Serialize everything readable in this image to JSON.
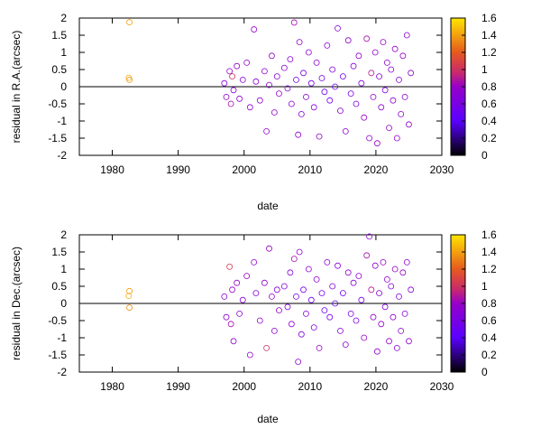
{
  "chart_data": [
    {
      "type": "scatter",
      "xlabel": "date",
      "ylabel": "residual in R.A.(arcsec)",
      "xlim": [
        1975,
        2030
      ],
      "ylim": [
        -2,
        2
      ],
      "xticks": [
        1980,
        1990,
        2000,
        2010,
        2020,
        2030
      ],
      "yticks": [
        -2,
        -1.5,
        -1,
        -0.5,
        0,
        0.5,
        1,
        1.5,
        2
      ],
      "colorbar": {
        "min": 0,
        "max": 1.6,
        "ticks": [
          0,
          0.2,
          0.4,
          0.6,
          0.8,
          1,
          1.2,
          1.4,
          1.6
        ]
      },
      "zero_line": true,
      "series": [
        {
          "points": [
            [
              1982.6,
              1.88,
              1.4
            ],
            [
              1982.5,
              0.26,
              1.45
            ],
            [
              1982.6,
              0.2,
              1.35
            ],
            [
              1997.0,
              0.1,
              0.7
            ],
            [
              1997.3,
              -0.3,
              0.75
            ],
            [
              1997.8,
              0.45,
              0.8
            ],
            [
              1998.0,
              -0.5,
              0.85
            ],
            [
              1998.2,
              0.3,
              1.0
            ],
            [
              1998.4,
              -0.1,
              0.7
            ],
            [
              1998.9,
              0.6,
              0.8
            ],
            [
              1999.3,
              -0.35,
              0.75
            ],
            [
              1999.8,
              0.2,
              0.7
            ],
            [
              2000.4,
              0.7,
              0.8
            ],
            [
              2000.9,
              -0.6,
              0.75
            ],
            [
              2001.5,
              1.67,
              0.8
            ],
            [
              2001.8,
              0.15,
              0.7
            ],
            [
              2002.4,
              -0.4,
              0.8
            ],
            [
              2003.1,
              0.45,
              0.75
            ],
            [
              2003.4,
              -1.3,
              0.8
            ],
            [
              2003.8,
              0.05,
              0.7
            ],
            [
              2004.2,
              0.9,
              0.8
            ],
            [
              2004.6,
              -0.75,
              0.75
            ],
            [
              2005.0,
              0.3,
              0.7
            ],
            [
              2005.3,
              -0.2,
              0.8
            ],
            [
              2006.1,
              0.55,
              0.7
            ],
            [
              2006.6,
              -0.05,
              0.65
            ],
            [
              2007.0,
              0.8,
              0.7
            ],
            [
              2007.2,
              -0.5,
              0.75
            ],
            [
              2007.6,
              1.87,
              0.85
            ],
            [
              2007.9,
              0.2,
              0.6
            ],
            [
              2008.2,
              -1.4,
              0.75
            ],
            [
              2008.4,
              1.3,
              0.8
            ],
            [
              2008.7,
              -0.8,
              0.7
            ],
            [
              2009.0,
              0.4,
              0.6
            ],
            [
              2009.4,
              -0.3,
              0.7
            ],
            [
              2009.8,
              1.0,
              0.75
            ],
            [
              2010.2,
              0.1,
              0.55
            ],
            [
              2010.6,
              -0.6,
              0.7
            ],
            [
              2011.0,
              0.7,
              0.75
            ],
            [
              2011.4,
              -1.45,
              0.8
            ],
            [
              2011.8,
              0.25,
              0.6
            ],
            [
              2012.2,
              -0.15,
              0.55
            ],
            [
              2012.6,
              1.2,
              0.75
            ],
            [
              2013.0,
              -0.4,
              0.6
            ],
            [
              2013.4,
              0.5,
              0.7
            ],
            [
              2013.8,
              0.0,
              0.5
            ],
            [
              2014.2,
              1.7,
              0.7
            ],
            [
              2014.6,
              -0.7,
              0.7
            ],
            [
              2015.0,
              0.3,
              0.55
            ],
            [
              2015.4,
              -1.3,
              0.7
            ],
            [
              2015.8,
              1.35,
              0.75
            ],
            [
              2016.2,
              -0.2,
              0.6
            ],
            [
              2016.6,
              0.6,
              0.7
            ],
            [
              2017.0,
              -0.5,
              0.65
            ],
            [
              2017.4,
              0.9,
              0.75
            ],
            [
              2017.8,
              0.1,
              0.6
            ],
            [
              2018.2,
              -0.9,
              0.8
            ],
            [
              2018.6,
              1.4,
              0.85
            ],
            [
              2019.0,
              -1.5,
              0.75
            ],
            [
              2019.3,
              0.4,
              0.9
            ],
            [
              2019.6,
              -0.3,
              0.8
            ],
            [
              2019.9,
              1.0,
              0.75
            ],
            [
              2020.2,
              -1.65,
              0.8
            ],
            [
              2020.5,
              0.3,
              0.7
            ],
            [
              2020.8,
              -0.6,
              0.75
            ],
            [
              2021.1,
              1.3,
              0.8
            ],
            [
              2021.4,
              -0.1,
              0.65
            ],
            [
              2021.7,
              0.7,
              0.75
            ],
            [
              2022.0,
              -1.2,
              0.8
            ],
            [
              2022.3,
              0.5,
              0.7
            ],
            [
              2022.6,
              -0.4,
              0.75
            ],
            [
              2022.9,
              1.1,
              0.8
            ],
            [
              2023.2,
              -1.5,
              0.75
            ],
            [
              2023.5,
              0.2,
              0.7
            ],
            [
              2023.8,
              -0.8,
              0.75
            ],
            [
              2024.1,
              0.9,
              0.8
            ],
            [
              2024.4,
              -0.3,
              0.7
            ],
            [
              2024.7,
              1.5,
              0.75
            ],
            [
              2025.0,
              -1.1,
              0.8
            ],
            [
              2025.3,
              0.4,
              0.7
            ]
          ]
        }
      ]
    },
    {
      "type": "scatter",
      "xlabel": "date",
      "ylabel": "residual in Dec.(arcsec)",
      "xlim": [
        1975,
        2030
      ],
      "ylim": [
        -2,
        2
      ],
      "xticks": [
        1980,
        1990,
        2000,
        2010,
        2020,
        2030
      ],
      "yticks": [
        -2,
        -1.5,
        -1,
        -0.5,
        0,
        0.5,
        1,
        1.5,
        2
      ],
      "colorbar": {
        "min": 0,
        "max": 1.6,
        "ticks": [
          0,
          0.2,
          0.4,
          0.6,
          0.8,
          1,
          1.2,
          1.4,
          1.6
        ]
      },
      "zero_line": true,
      "series": [
        {
          "points": [
            [
              1982.6,
              0.36,
              1.4
            ],
            [
              1982.5,
              0.22,
              1.45
            ],
            [
              1982.6,
              -0.12,
              1.35
            ],
            [
              1997.0,
              0.2,
              0.7
            ],
            [
              1997.3,
              -0.4,
              0.75
            ],
            [
              1997.8,
              1.07,
              1.05
            ],
            [
              1998.0,
              -0.6,
              0.85
            ],
            [
              1998.2,
              0.4,
              0.8
            ],
            [
              1998.4,
              -1.1,
              0.75
            ],
            [
              1998.9,
              0.6,
              0.8
            ],
            [
              1999.3,
              -0.3,
              0.75
            ],
            [
              1999.8,
              0.1,
              0.7
            ],
            [
              2000.4,
              0.8,
              0.8
            ],
            [
              2000.9,
              -1.5,
              0.75
            ],
            [
              2001.5,
              1.2,
              0.8
            ],
            [
              2001.8,
              0.3,
              0.7
            ],
            [
              2002.4,
              -0.5,
              0.8
            ],
            [
              2003.1,
              0.6,
              0.75
            ],
            [
              2003.4,
              -1.3,
              1.0
            ],
            [
              2003.8,
              1.6,
              0.8
            ],
            [
              2004.2,
              0.2,
              0.8
            ],
            [
              2004.6,
              -0.8,
              0.75
            ],
            [
              2005.0,
              0.4,
              0.7
            ],
            [
              2005.3,
              -0.2,
              0.8
            ],
            [
              2006.1,
              0.5,
              0.7
            ],
            [
              2006.6,
              -0.1,
              0.65
            ],
            [
              2007.0,
              0.9,
              0.7
            ],
            [
              2007.2,
              -0.6,
              0.75
            ],
            [
              2007.6,
              1.3,
              0.85
            ],
            [
              2007.9,
              0.2,
              0.6
            ],
            [
              2008.2,
              -1.7,
              0.75
            ],
            [
              2008.4,
              1.5,
              0.8
            ],
            [
              2008.7,
              -0.9,
              0.7
            ],
            [
              2009.0,
              0.4,
              0.6
            ],
            [
              2009.4,
              -0.3,
              0.7
            ],
            [
              2009.8,
              1.0,
              0.75
            ],
            [
              2010.2,
              0.1,
              0.55
            ],
            [
              2010.6,
              -0.7,
              0.7
            ],
            [
              2011.0,
              0.7,
              0.75
            ],
            [
              2011.4,
              -1.3,
              0.8
            ],
            [
              2011.8,
              0.3,
              0.6
            ],
            [
              2012.2,
              -0.2,
              0.55
            ],
            [
              2012.6,
              1.2,
              0.75
            ],
            [
              2013.0,
              -0.4,
              0.6
            ],
            [
              2013.4,
              0.5,
              0.7
            ],
            [
              2013.8,
              0.0,
              0.5
            ],
            [
              2014.2,
              1.1,
              0.7
            ],
            [
              2014.6,
              -0.8,
              0.7
            ],
            [
              2015.0,
              0.3,
              0.55
            ],
            [
              2015.4,
              -1.2,
              0.7
            ],
            [
              2015.8,
              0.9,
              0.75
            ],
            [
              2016.2,
              -0.3,
              0.6
            ],
            [
              2016.6,
              0.6,
              0.7
            ],
            [
              2017.0,
              -0.5,
              0.65
            ],
            [
              2017.4,
              0.8,
              0.75
            ],
            [
              2017.8,
              0.1,
              0.6
            ],
            [
              2018.2,
              -1.0,
              0.8
            ],
            [
              2018.6,
              1.4,
              0.85
            ],
            [
              2019.0,
              1.95,
              0.75
            ],
            [
              2019.3,
              0.4,
              0.9
            ],
            [
              2019.6,
              -0.4,
              0.8
            ],
            [
              2019.9,
              1.1,
              0.75
            ],
            [
              2020.2,
              -1.4,
              0.8
            ],
            [
              2020.5,
              0.3,
              0.7
            ],
            [
              2020.8,
              -0.6,
              0.75
            ],
            [
              2021.1,
              1.2,
              0.8
            ],
            [
              2021.4,
              -0.1,
              0.65
            ],
            [
              2021.7,
              0.7,
              0.75
            ],
            [
              2022.0,
              -1.1,
              0.8
            ],
            [
              2022.3,
              0.5,
              0.7
            ],
            [
              2022.6,
              -0.4,
              0.75
            ],
            [
              2022.9,
              1.0,
              0.8
            ],
            [
              2023.2,
              -1.3,
              0.75
            ],
            [
              2023.5,
              0.2,
              0.7
            ],
            [
              2023.8,
              -0.8,
              0.75
            ],
            [
              2024.1,
              0.9,
              0.8
            ],
            [
              2024.4,
              -0.3,
              0.7
            ],
            [
              2024.7,
              1.2,
              0.75
            ],
            [
              2025.0,
              -1.1,
              0.8
            ],
            [
              2025.3,
              0.4,
              0.7
            ]
          ]
        }
      ]
    }
  ]
}
